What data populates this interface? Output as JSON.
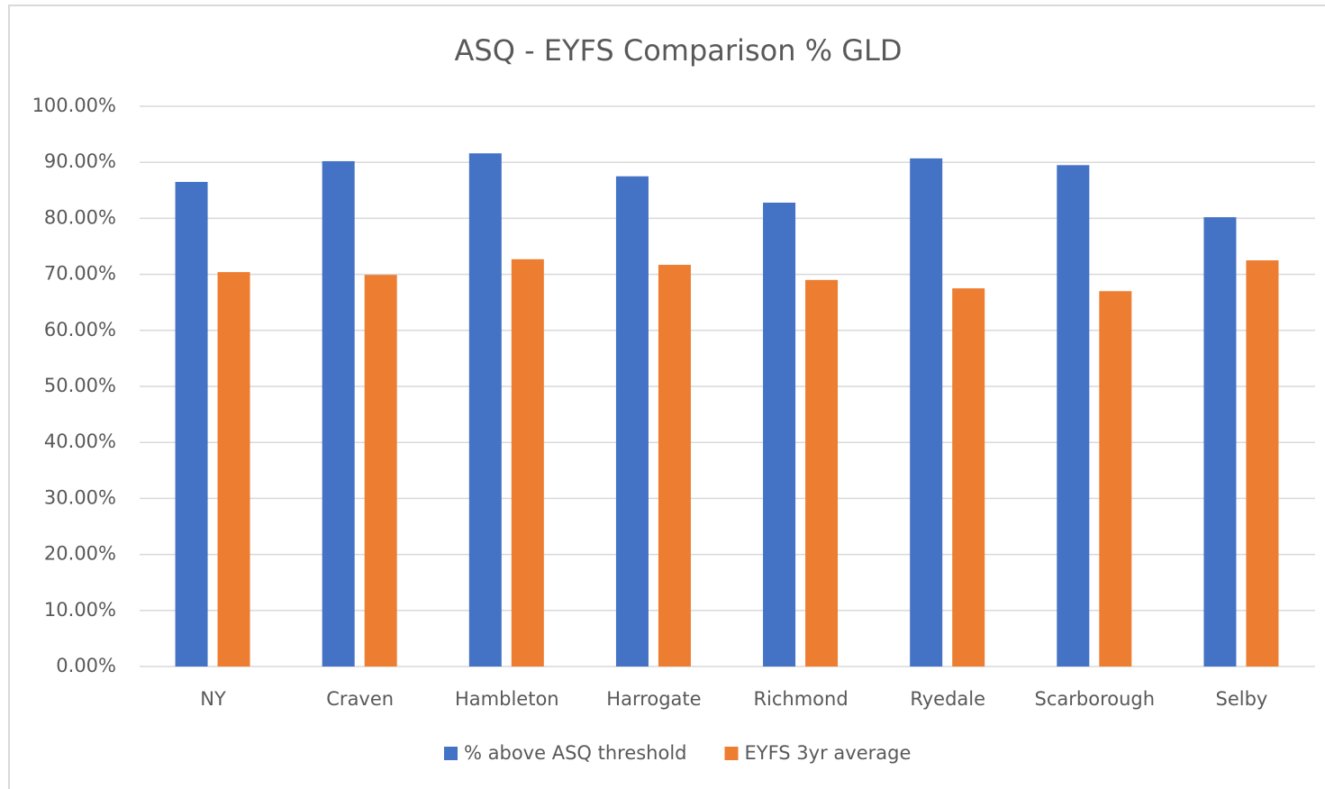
{
  "chart_data": {
    "type": "bar",
    "title": "ASQ - EYFS Comparison  % GLD",
    "categories": [
      "NY",
      "Craven",
      "Hambleton",
      "Harrogate",
      "Richmond",
      "Ryedale",
      "Scarborough",
      "Selby"
    ],
    "series": [
      {
        "name": "% above ASQ threshold",
        "color": "#4472c4",
        "values": [
          86.5,
          90.2,
          91.6,
          87.5,
          82.8,
          90.7,
          89.5,
          80.2
        ]
      },
      {
        "name": "EYFS 3yr average",
        "color": "#ed7d31",
        "values": [
          70.4,
          69.9,
          72.7,
          71.7,
          69.0,
          67.5,
          67.0,
          72.5
        ]
      }
    ],
    "ylim": [
      0,
      100
    ],
    "yticks": [
      {
        "value": 0,
        "label": "0.00%"
      },
      {
        "value": 10,
        "label": "10.00%"
      },
      {
        "value": 20,
        "label": "20.00%"
      },
      {
        "value": 30,
        "label": "30.00%"
      },
      {
        "value": 40,
        "label": "40.00%"
      },
      {
        "value": 50,
        "label": "50.00%"
      },
      {
        "value": 60,
        "label": "60.00%"
      },
      {
        "value": 70,
        "label": "70.00%"
      },
      {
        "value": 80,
        "label": "80.00%"
      },
      {
        "value": 90,
        "label": "90.00%"
      },
      {
        "value": 100,
        "label": "100.00%"
      }
    ],
    "grid": true,
    "legend": "bottom"
  }
}
